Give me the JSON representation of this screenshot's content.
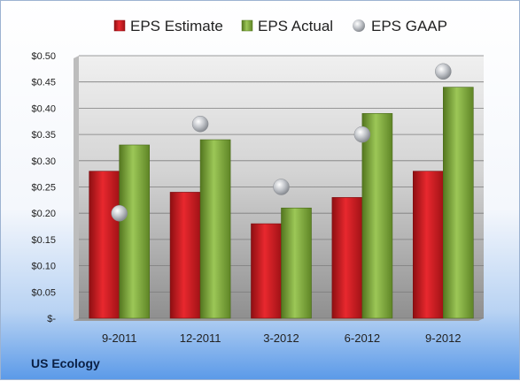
{
  "chart_data": {
    "type": "bar",
    "footer_label": "US Ecology",
    "categories": [
      "9-2011",
      "12-2011",
      "3-2012",
      "6-2012",
      "9-2012"
    ],
    "series": [
      {
        "name": "EPS Estimate",
        "kind": "bar",
        "color": "#c8161c",
        "values": [
          0.28,
          0.24,
          0.18,
          0.23,
          0.28
        ]
      },
      {
        "name": "EPS Actual",
        "kind": "bar",
        "color": "#7aa33a",
        "values": [
          0.33,
          0.34,
          0.21,
          0.39,
          0.44
        ]
      },
      {
        "name": "EPS GAAP",
        "kind": "scatter",
        "color": "#b9bcc2",
        "values": [
          0.2,
          0.37,
          0.25,
          0.35,
          0.47
        ]
      }
    ],
    "y_ticks": [
      "$-",
      "$0.05",
      "$0.10",
      "$0.15",
      "$0.20",
      "$0.25",
      "$0.30",
      "$0.35",
      "$0.40",
      "$0.45",
      "$0.50"
    ],
    "ylim": [
      0,
      0.5
    ],
    "grid": true,
    "legend_position": "top"
  }
}
